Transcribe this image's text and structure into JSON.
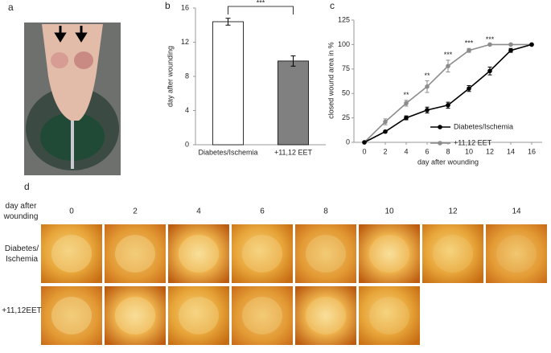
{
  "panel_labels": [
    "a",
    "b",
    "c",
    "d"
  ],
  "chart_data": [
    {
      "type": "bar",
      "categories": [
        "Diabetes/Ischemia",
        "+11,12 EET"
      ],
      "values": [
        14.4,
        9.8
      ],
      "errors": [
        0.4,
        0.6
      ],
      "colors": [
        "#ffffff",
        "#808080"
      ],
      "ylabel": "day after wounding",
      "ylim": [
        0,
        16
      ],
      "yticks": [
        0,
        4,
        8,
        12,
        16
      ],
      "significance": "***"
    },
    {
      "type": "line",
      "x": [
        0,
        2,
        4,
        6,
        8,
        10,
        12,
        14,
        16
      ],
      "series": [
        {
          "name": "Diabetes/Ischemia",
          "color": "#000000",
          "values": [
            0,
            11,
            25,
            33,
            38,
            55,
            73,
            94,
            100
          ],
          "errors": [
            0,
            1,
            2,
            3,
            3,
            3,
            4,
            2,
            0
          ]
        },
        {
          "name": "+11,12 EET",
          "color": "#8c8c8c",
          "values": [
            0,
            21,
            40,
            57,
            78,
            94,
            100,
            100,
            100
          ],
          "errors": [
            0,
            3,
            3,
            6,
            6,
            2,
            0,
            0,
            0
          ]
        }
      ],
      "xlabel": "day after wounding",
      "ylabel": "closed wound area in %",
      "xlim": [
        -1,
        17
      ],
      "ylim": [
        0,
        125
      ],
      "xticks": [
        0,
        2,
        4,
        6,
        8,
        10,
        12,
        14,
        16
      ],
      "yticks": [
        0,
        25,
        50,
        75,
        100,
        125
      ],
      "annotations": [
        {
          "x": 4,
          "text": "**"
        },
        {
          "x": 6,
          "text": "**"
        },
        {
          "x": 8,
          "text": "***"
        },
        {
          "x": 10,
          "text": "***"
        },
        {
          "x": 12,
          "text": "***"
        }
      ]
    }
  ],
  "photo_grid": {
    "corner_label": "day after wounding",
    "columns": [
      "0",
      "2",
      "4",
      "6",
      "8",
      "10",
      "12",
      "14"
    ],
    "rows": [
      "Diabetes/ Ischemia",
      "+11,12EET"
    ]
  }
}
